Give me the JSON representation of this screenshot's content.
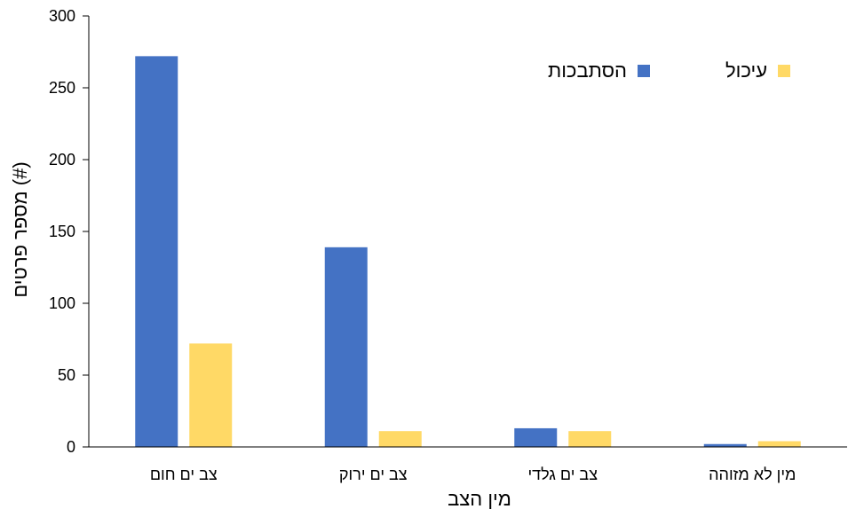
{
  "chart_data": {
    "type": "bar",
    "categories": [
      "צב ים חום",
      "צב ים ירוק",
      "צב ים גלדי",
      "מין לא מזוהה"
    ],
    "series": [
      {
        "name": "הסתבכות",
        "values": [
          272,
          139,
          13,
          2
        ],
        "color": "#4472C4"
      },
      {
        "name": "עיכול",
        "values": [
          72,
          11,
          11,
          4
        ],
        "color": "#FFD966"
      }
    ],
    "xlabel": "מין הצב",
    "ylabel": "מספר פרטים (#)",
    "ylim": [
      0,
      300
    ],
    "yticks": [
      0,
      50,
      100,
      150,
      200,
      250,
      300
    ],
    "grid": false,
    "legend_position": "top-right"
  }
}
